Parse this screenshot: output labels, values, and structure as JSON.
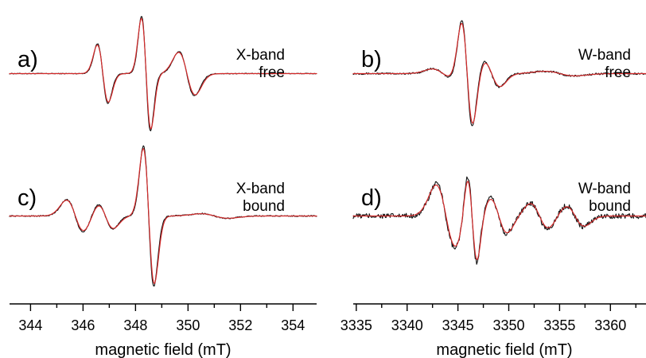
{
  "colors": {
    "experiment": "#111111",
    "simulation": "#d42a2a"
  },
  "chart_data": [
    {
      "type": "line",
      "panel": "a)",
      "label_lines": [
        "X-band",
        "free"
      ],
      "xlabel": "magnetic field (mT)",
      "xlim": [
        343.2,
        354.9
      ],
      "xticks": [
        344,
        346,
        348,
        350,
        352,
        354
      ],
      "ylim": [
        -1.2,
        1.2
      ],
      "noise": 0.008,
      "series": [],
      "shape": [
        {
          "x": 346.75,
          "a": 0.62,
          "w": 0.28
        },
        {
          "x": 348.4,
          "a": 1.2,
          "w": 0.24
        },
        {
          "x": 349.95,
          "a": 0.46,
          "w": 0.42
        }
      ]
    },
    {
      "type": "line",
      "panel": "b)",
      "label_lines": [
        "W-band",
        "free"
      ],
      "xlabel": "magnetic field (mT)",
      "xlim": [
        3334.7,
        3363.5
      ],
      "xticks": [
        3335,
        3340,
        3345,
        3350,
        3355,
        3360
      ],
      "ylim": [
        -1.2,
        1.2
      ],
      "noise": 0.018,
      "series": [],
      "shape": [
        {
          "x": 3345.9,
          "a": 1.15,
          "w": 0.75
        },
        {
          "x": 3343.5,
          "a": 0.1,
          "w": 1.4
        },
        {
          "x": 3348.3,
          "a": 0.28,
          "w": 1.1
        },
        {
          "x": 3355.0,
          "a": 0.05,
          "w": 2.0
        }
      ]
    },
    {
      "type": "line",
      "panel": "c)",
      "label_lines": [
        "X-band",
        "bound"
      ],
      "xlabel": "magnetic field (mT)",
      "xlim": [
        343.2,
        354.9
      ],
      "xticks": [
        344,
        346,
        348,
        350,
        352,
        354
      ],
      "ylim": [
        -1.2,
        1.2
      ],
      "noise": 0.01,
      "series": [],
      "shape": [
        {
          "x": 345.7,
          "a": 0.28,
          "w": 0.45
        },
        {
          "x": 346.85,
          "a": 0.22,
          "w": 0.4
        },
        {
          "x": 348.5,
          "a": 1.2,
          "w": 0.28
        },
        {
          "x": 351.0,
          "a": 0.04,
          "w": 0.7
        }
      ]
    },
    {
      "type": "line",
      "panel": "d)",
      "label_lines": [
        "W-band",
        "bound"
      ],
      "xlabel": "magnetic field (mT)",
      "xlim": [
        3334.7,
        3363.5
      ],
      "xticks": [
        3335,
        3340,
        3345,
        3350,
        3355,
        3360
      ],
      "ylim": [
        -1.2,
        1.2
      ],
      "noise": 0.045,
      "series": [],
      "shape": [
        {
          "x": 3343.8,
          "a": 0.55,
          "w": 1.3
        },
        {
          "x": 3346.4,
          "a": 0.8,
          "w": 0.65
        },
        {
          "x": 3349.0,
          "a": 0.3,
          "w": 1.1
        },
        {
          "x": 3353.0,
          "a": 0.22,
          "w": 1.2
        },
        {
          "x": 3356.5,
          "a": 0.18,
          "w": 1.2
        }
      ]
    }
  ]
}
